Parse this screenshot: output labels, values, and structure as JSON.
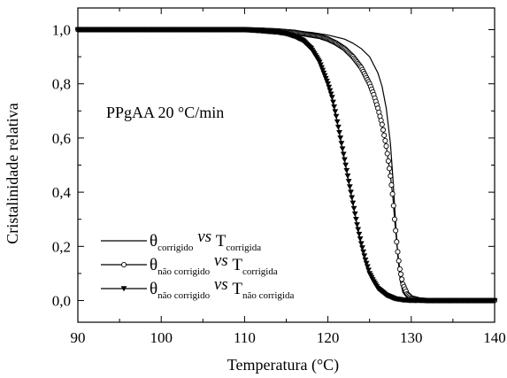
{
  "chart_data": {
    "type": "line",
    "xlabel": "Temperatura (°C)",
    "ylabel": "Cristalinidade relativa",
    "annotation": "PPgAA  20 °C/min",
    "xlim": [
      90,
      140
    ],
    "ylim": [
      -0.08,
      1.08
    ],
    "x_ticks": [
      90,
      100,
      110,
      120,
      130,
      140
    ],
    "x_tick_labels": [
      "90",
      "100",
      "110",
      "120",
      "130",
      "140"
    ],
    "y_ticks": [
      0.0,
      0.2,
      0.4,
      0.6,
      0.8,
      1.0
    ],
    "y_tick_labels": [
      "0,0",
      "0,2",
      "0,4",
      "0,6",
      "0,8",
      "1,0"
    ],
    "grid": false,
    "legend_position": "lower-left",
    "series": [
      {
        "legend": {
          "theta_sub": "corrigido",
          "vs": "vs",
          "t_sub": "corrigida"
        },
        "marker": "none",
        "points": [
          [
            90,
            1.0
          ],
          [
            110,
            1.0
          ],
          [
            115,
            0.997
          ],
          [
            118,
            0.99
          ],
          [
            120,
            0.98
          ],
          [
            122,
            0.965
          ],
          [
            123,
            0.95
          ],
          [
            124,
            0.93
          ],
          [
            125,
            0.9
          ],
          [
            126,
            0.84
          ],
          [
            126.5,
            0.79
          ],
          [
            127,
            0.71
          ],
          [
            127.5,
            0.58
          ],
          [
            127.8,
            0.45
          ],
          [
            128.1,
            0.3
          ],
          [
            128.4,
            0.16
          ],
          [
            128.7,
            0.07
          ],
          [
            129,
            0.03
          ],
          [
            129.5,
            0.01
          ],
          [
            130,
            0.003
          ],
          [
            131,
            0.0
          ],
          [
            140,
            0.0
          ]
        ]
      },
      {
        "legend": {
          "theta_sub": "não corrigido",
          "vs": "vs",
          "t_sub": "corrigida"
        },
        "marker": "open-circle",
        "points": [
          [
            90,
            1.0
          ],
          [
            110,
            1.0
          ],
          [
            112,
            0.998
          ],
          [
            114,
            0.995
          ],
          [
            116,
            0.99
          ],
          [
            118,
            0.98
          ],
          [
            119,
            0.975
          ],
          [
            120,
            0.965
          ],
          [
            121,
            0.95
          ],
          [
            122,
            0.93
          ],
          [
            123,
            0.9
          ],
          [
            124,
            0.86
          ],
          [
            125,
            0.8
          ],
          [
            125.5,
            0.76
          ],
          [
            126,
            0.71
          ],
          [
            126.5,
            0.65
          ],
          [
            127,
            0.57
          ],
          [
            127.5,
            0.46
          ],
          [
            127.8,
            0.38
          ],
          [
            128,
            0.3
          ],
          [
            128.3,
            0.2
          ],
          [
            128.6,
            0.12
          ],
          [
            129,
            0.06
          ],
          [
            129.5,
            0.025
          ],
          [
            130,
            0.01
          ],
          [
            131,
            0.002
          ],
          [
            132,
            0.0
          ],
          [
            140,
            0.0
          ]
        ]
      },
      {
        "legend": {
          "theta_sub": "não corrigido",
          "vs": "vs",
          "t_sub": "não corrigida"
        },
        "marker": "filled-triangle-down",
        "points": [
          [
            90,
            1.0
          ],
          [
            110,
            1.0
          ],
          [
            112,
            0.995
          ],
          [
            114,
            0.99
          ],
          [
            115,
            0.985
          ],
          [
            116,
            0.975
          ],
          [
            117,
            0.96
          ],
          [
            118,
            0.93
          ],
          [
            119,
            0.88
          ],
          [
            120,
            0.8
          ],
          [
            120.5,
            0.75
          ],
          [
            121,
            0.68
          ],
          [
            121.5,
            0.6
          ],
          [
            122,
            0.52
          ],
          [
            122.5,
            0.44
          ],
          [
            123,
            0.36
          ],
          [
            123.5,
            0.28
          ],
          [
            124,
            0.21
          ],
          [
            124.5,
            0.15
          ],
          [
            125,
            0.1
          ],
          [
            125.5,
            0.07
          ],
          [
            126,
            0.045
          ],
          [
            127,
            0.02
          ],
          [
            128,
            0.007
          ],
          [
            129,
            0.002
          ],
          [
            130,
            0.0
          ],
          [
            140,
            0.0
          ]
        ]
      }
    ]
  }
}
